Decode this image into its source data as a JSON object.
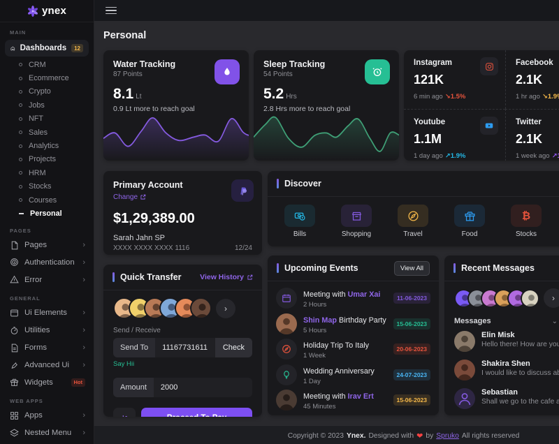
{
  "sidebar": {
    "logo_text": "ynex",
    "main_label": "MAIN",
    "dashboards": {
      "label": "Dashboards",
      "badge": "12"
    },
    "subs": [
      "CRM",
      "Ecommerce",
      "Crypto",
      "Jobs",
      "NFT",
      "Sales",
      "Analytics",
      "Projects",
      "HRM",
      "Stocks",
      "Courses",
      "Personal"
    ],
    "pages_label": "PAGES",
    "pages_items": [
      "Pages",
      "Authentication",
      "Error"
    ],
    "general_label": "GENERAL",
    "general_items": [
      "Ui Elements",
      "Utilities",
      "Forms",
      "Advanced Ui",
      "Widgets"
    ],
    "widgets_badge": "Hot",
    "webapps_label": "WEB APPS",
    "webapps_items": [
      "Apps",
      "Nested Menu"
    ]
  },
  "page": {
    "title": "Personal"
  },
  "water": {
    "title": "Water Tracking",
    "points": "87 Points",
    "value": "8.1",
    "unit": "Lt",
    "note": "0.9 Lt more to reach goal",
    "color": "#845adf",
    "icon_bg": "#8152e8",
    "series": [
      [
        0,
        55
      ],
      [
        8,
        42
      ],
      [
        17,
        74
      ],
      [
        26,
        38
      ],
      [
        34,
        6
      ],
      [
        43,
        42
      ],
      [
        52,
        60
      ],
      [
        62,
        52
      ],
      [
        70,
        47
      ],
      [
        79,
        62
      ],
      [
        88,
        8
      ],
      [
        96,
        40
      ],
      [
        100,
        48
      ]
    ]
  },
  "sleep": {
    "title": "Sleep Tracking",
    "points": "54 Points",
    "value": "5.2",
    "unit": "Hrs",
    "note": "2.8 Hrs more to reach goal",
    "color": "#3f9f76",
    "icon_bg": "#26bf94",
    "series": [
      [
        0,
        52
      ],
      [
        8,
        22
      ],
      [
        15,
        5
      ],
      [
        24,
        55
      ],
      [
        33,
        76
      ],
      [
        42,
        48
      ],
      [
        50,
        42
      ],
      [
        57,
        52
      ],
      [
        65,
        25
      ],
      [
        72,
        9
      ],
      [
        80,
        55
      ],
      [
        87,
        86
      ],
      [
        94,
        42
      ],
      [
        100,
        47
      ]
    ]
  },
  "social": {
    "items": [
      {
        "name": "Instagram",
        "value": "121K",
        "time": "6 min ago",
        "change": "↘1.5%",
        "change_color": "#e6533c",
        "icon_color": "#e6533c"
      },
      {
        "name": "Facebook",
        "value": "2.1K",
        "time": "1 hr ago",
        "change": "↘1.9%",
        "change_color": "#f5b849",
        "icon_color": "#4a7fd6"
      },
      {
        "name": "Youtube",
        "value": "1.1M",
        "time": "1 day ago",
        "change": "↗1.9%",
        "change_color": "#23b7e5",
        "icon_color": "#2d9bf0"
      },
      {
        "name": "Twitter",
        "value": "2.1K",
        "time": "1 week ago",
        "change": "↗1.9%",
        "change_color": "#9455f3",
        "icon_color": "#49b6f5"
      }
    ]
  },
  "account": {
    "title": "Primary Account",
    "change_label": "Change",
    "amount": "$1,29,389.00",
    "holder": "Sarah Jahn SP",
    "card_number": "XXXX XXXX XXXX 1116",
    "expiry": "12/24"
  },
  "discover": {
    "title": "Discover",
    "items": [
      {
        "label": "Bills",
        "color": "#23b7e5",
        "bg": "rgba(35,150,180,0.14)"
      },
      {
        "label": "Shopping",
        "color": "#845adf",
        "bg": "rgba(132,90,223,0.14)"
      },
      {
        "label": "Travel",
        "color": "#f5b849",
        "bg": "rgba(245,184,73,0.13)"
      },
      {
        "label": "Food",
        "color": "#2d9bf0",
        "bg": "rgba(45,155,240,0.13)"
      },
      {
        "label": "Stocks",
        "color": "#e6533c",
        "bg": "rgba(230,83,60,0.12)"
      }
    ]
  },
  "quick_transfer": {
    "title": "Quick Transfer",
    "link": "View History",
    "avatars": [
      "#e8b88a",
      "#f0d06a",
      "#b97a56",
      "#7fa8d9",
      "#e58a5a",
      "#6b4a3a"
    ],
    "send_receive": "Send / Receive",
    "send_to_label": "Send To",
    "send_to_value": "11167731611",
    "check_label": "Check",
    "hint": "Say Hii",
    "amount_label": "Amount",
    "amount_value": "2000",
    "pay_label": "Proceed To Pay"
  },
  "events": {
    "title": "Upcoming Events",
    "view_all": "View All",
    "items": [
      {
        "pre": "Meeting with ",
        "link": "Umar Xai",
        "post": "",
        "sub": "2 Hours",
        "date": "11-06-2023",
        "date_color": "#845adf",
        "date_bg": "rgba(132,90,223,0.15)",
        "icon": "calendar"
      },
      {
        "pre": "",
        "link": "Shin Map",
        "post": " Birthday Party",
        "sub": "5 Hours",
        "date": "15-06-2023",
        "date_color": "#26bf94",
        "date_bg": "rgba(38,191,148,0.14)",
        "avatar": "#9a6a4f"
      },
      {
        "pre": "Holiday Trip To Italy",
        "link": "",
        "post": "",
        "sub": "1 Week",
        "date": "20-06-2023",
        "date_color": "#e6533c",
        "date_bg": "rgba(230,83,60,0.15)",
        "icon": "compass"
      },
      {
        "pre": "Wedding Anniversary",
        "link": "",
        "post": "",
        "sub": "1 Day",
        "date": "24-07-2023",
        "date_color": "#49b6f5",
        "date_bg": "rgba(73,182,245,0.14)",
        "icon": "balloon"
      },
      {
        "pre": "Meeting with ",
        "link": "Irav Ert",
        "post": "",
        "sub": "45 Minutes",
        "date": "15-06-2023",
        "date_color": "#f5b849",
        "date_bg": "rgba(245,184,73,0.14)",
        "avatar": "#4a3b33"
      }
    ]
  },
  "messages": {
    "title": "Recent Messages",
    "label": "Messages",
    "avatars": [
      "#7a5af5",
      "#8a8f98",
      "#c97ad0",
      "#d9a05a",
      "#b06ae0",
      "#d8d2c0"
    ],
    "items": [
      {
        "name": "Elin Misk",
        "text": "Hello there! How are you doing? Call me when",
        "avatar": "#8a7a6a"
      },
      {
        "name": "Shakira Shen",
        "text": "I would like to discuss about that assignment",
        "avatar": "#7a4a3a"
      },
      {
        "name": "Sebastian",
        "text": "Shall we go to the cafe at downtown today?",
        "avatar": "rgba(132,90,223,0.2)"
      }
    ]
  },
  "footer": {
    "c1": "Copyright © 2023",
    "brand": "Ynex.",
    "c2": "Designed with",
    "heart": "❤",
    "by": "by",
    "link": "Spruko",
    "c3": "All rights reserved"
  }
}
